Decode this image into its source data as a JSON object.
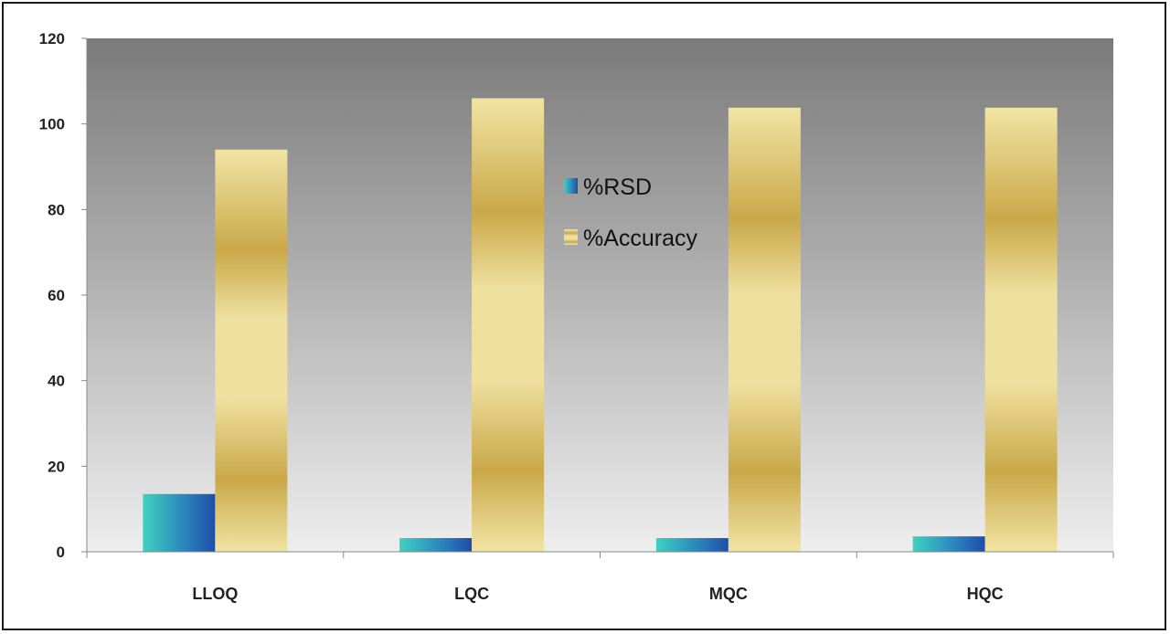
{
  "chart_data": {
    "type": "bar",
    "categories": [
      "LLOQ",
      "LQC",
      "MQC",
      "HQC"
    ],
    "series": [
      {
        "name": "%RSD",
        "values": [
          13.5,
          3.2,
          3.2,
          3.6
        ]
      },
      {
        "name": "%Accuracy",
        "values": [
          94.0,
          106.0,
          103.8,
          103.8
        ]
      }
    ],
    "ylim": [
      0,
      120
    ],
    "yticks": [
      0,
      20,
      40,
      60,
      80,
      100,
      120
    ],
    "ytick_labels": [
      "0",
      "20",
      "40",
      "60",
      "80",
      "100",
      "120"
    ],
    "grid": false,
    "legend_position": "center-top inside plot",
    "colors": {
      "rsd_light": "#3fd1bf",
      "rsd_dark": "#1f4ea8",
      "acc_light": "#f1e4a4",
      "acc_dark": "#c9a848",
      "plot_top": "#7a7a7a",
      "plot_bottom": "#eeeeee"
    }
  }
}
